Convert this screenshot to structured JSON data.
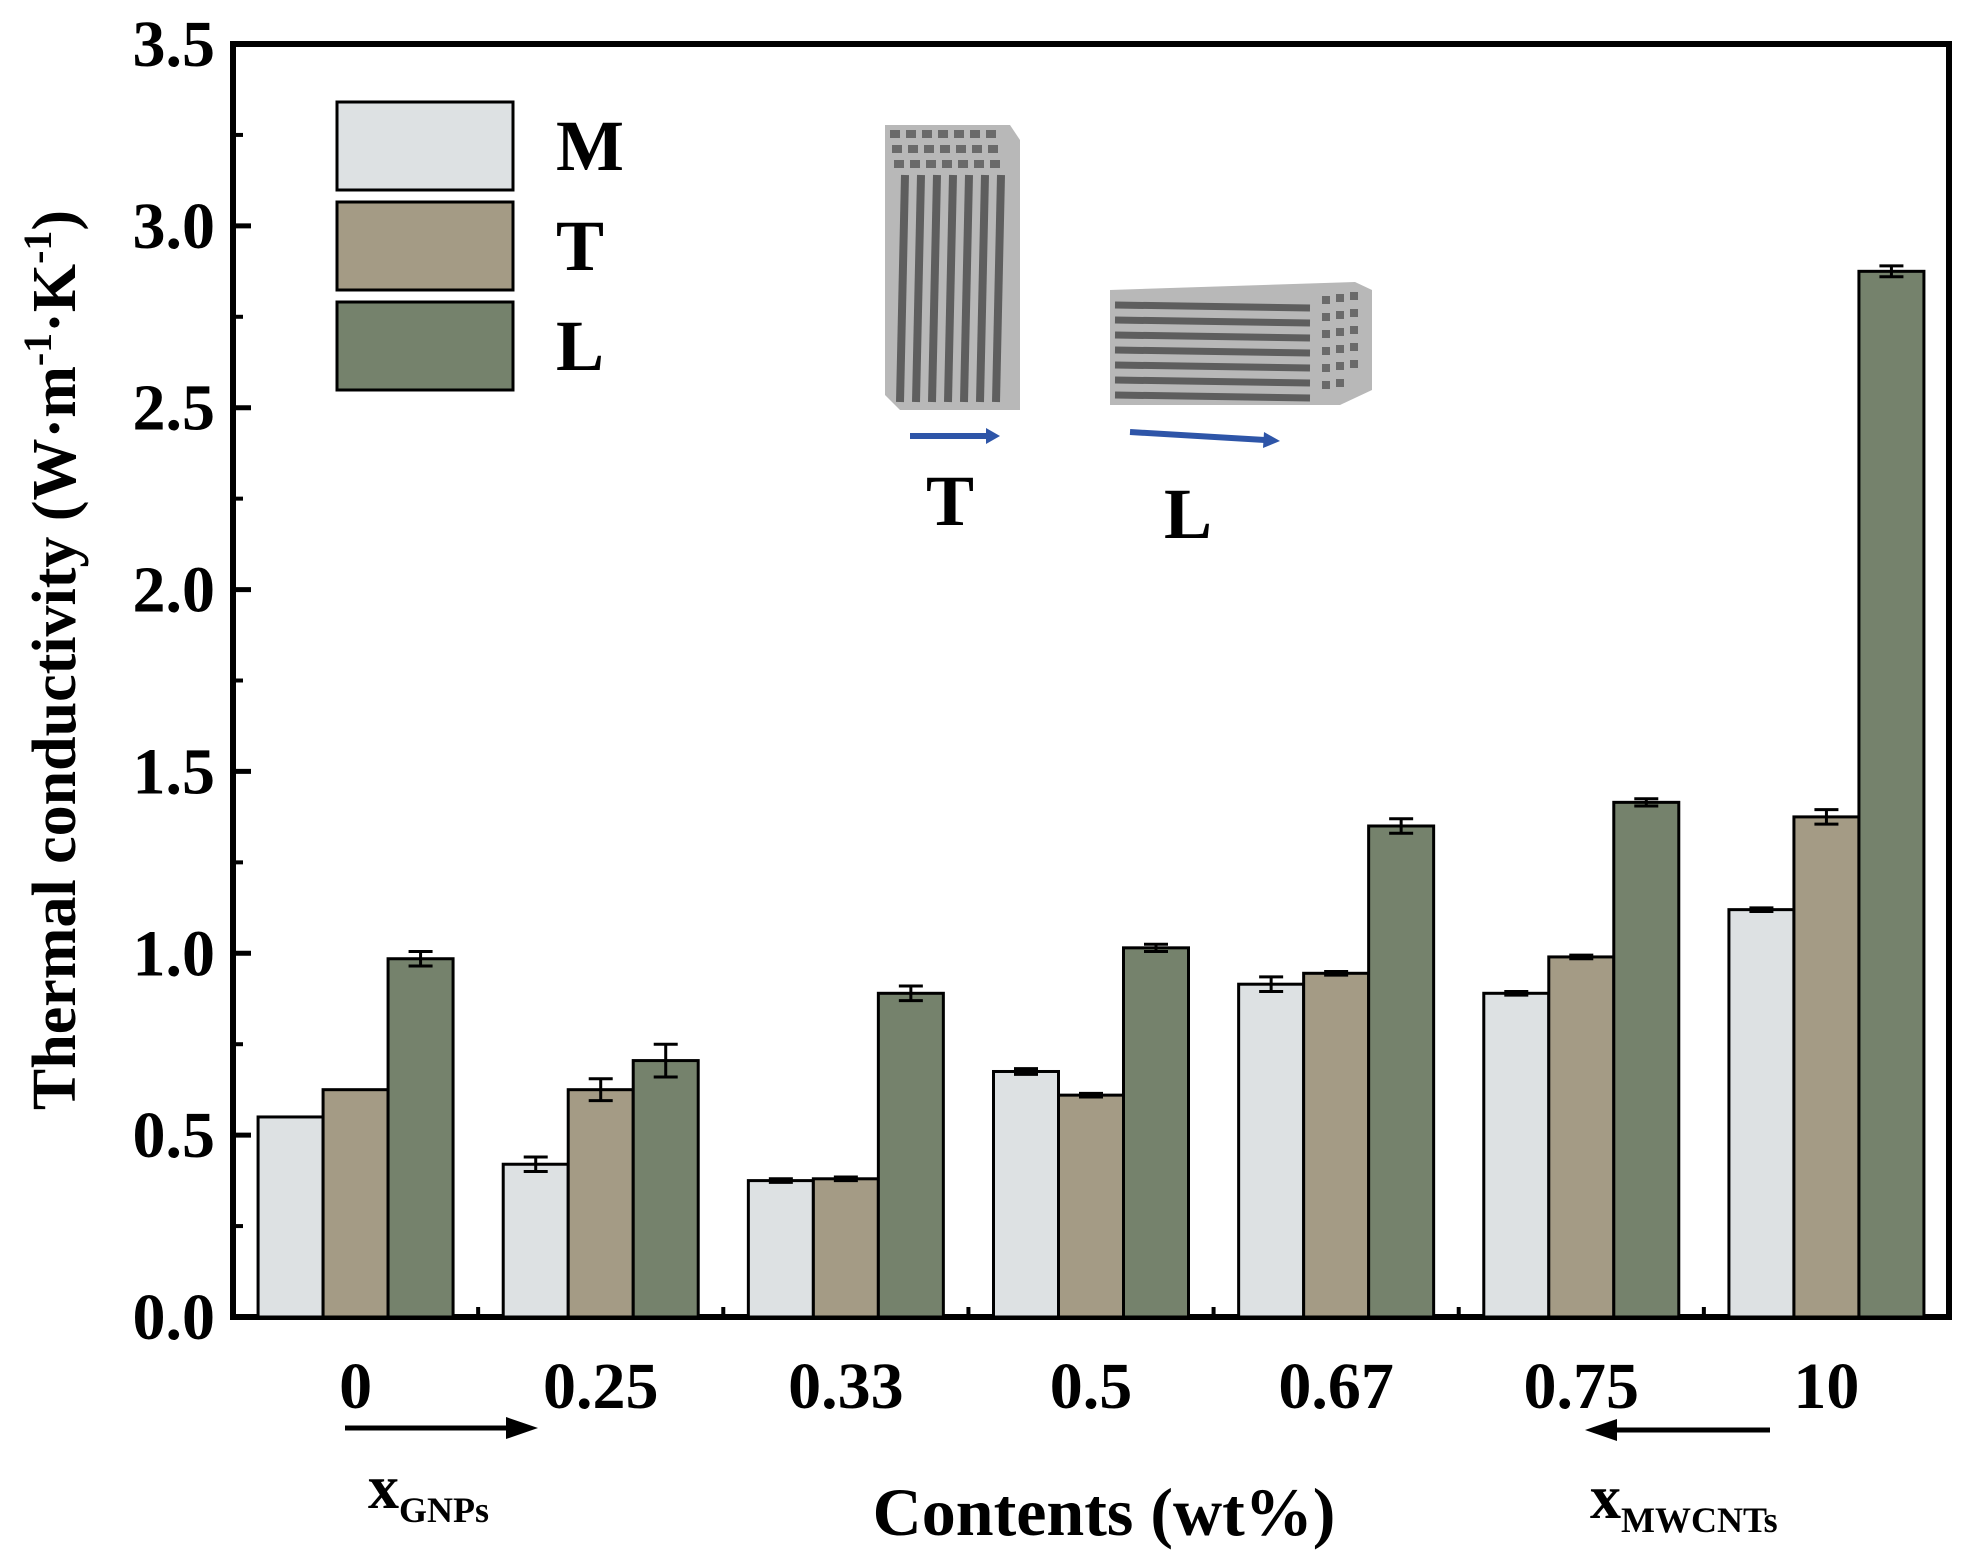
{
  "chart_data": {
    "type": "bar",
    "title": "",
    "xlabel": "Contents (wt%)",
    "ylabel": "Thermal conductivity (W·m",
    "ylabel_sup1": "-1",
    "ylabel_mid": "·K",
    "ylabel_sup2": "-1",
    "ylabel_end": ")",
    "ylim": [
      0,
      3.5
    ],
    "yticks": [
      "0.0",
      "0.5",
      "1.0",
      "1.5",
      "2.0",
      "2.5",
      "3.0",
      "3.5"
    ],
    "categories": [
      "0",
      "0.25",
      "0.33",
      "0.5",
      "0.67",
      "0.75",
      "10"
    ],
    "series": [
      {
        "name": "M",
        "color": "#dde1e3",
        "values": [
          0.55,
          0.42,
          0.375,
          0.675,
          0.915,
          0.89,
          1.12
        ],
        "errors": [
          0.0,
          0.02,
          0.005,
          0.008,
          0.02,
          0.005,
          0.005
        ]
      },
      {
        "name": "T",
        "color": "#a49b85",
        "values": [
          0.625,
          0.625,
          0.38,
          0.61,
          0.945,
          0.99,
          1.375
        ],
        "errors": [
          0.0,
          0.03,
          0.005,
          0.005,
          0.005,
          0.005,
          0.02
        ]
      },
      {
        "name": "L",
        "color": "#75826c",
        "values": [
          0.985,
          0.705,
          0.89,
          1.015,
          1.35,
          1.415,
          2.875
        ],
        "errors": [
          0.02,
          0.045,
          0.02,
          0.01,
          0.02,
          0.01,
          0.015
        ]
      }
    ],
    "legend_position": "top-left",
    "annotations": {
      "left_arrow_label": "x",
      "left_arrow_sub": "GNPs",
      "right_arrow_label": "x",
      "right_arrow_sub": "MWCNTs",
      "inset_label_T": "T",
      "inset_label_L": "L"
    }
  }
}
